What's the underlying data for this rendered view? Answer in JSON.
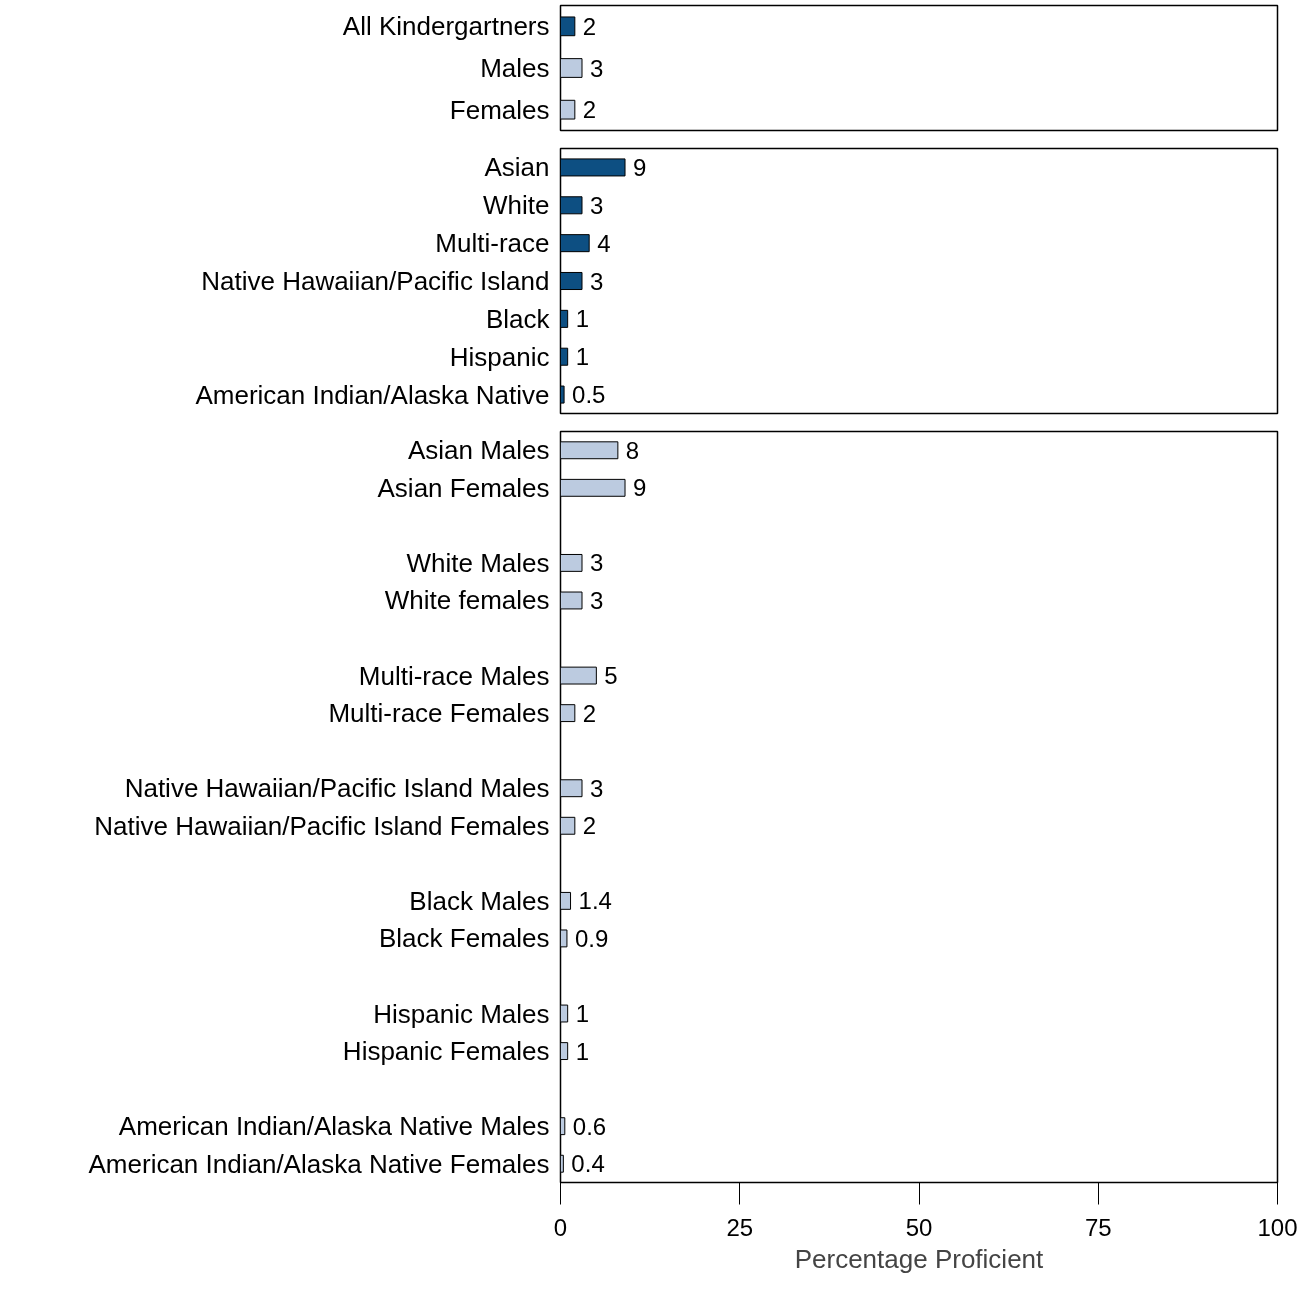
{
  "chart_data": [
    {
      "type": "bar",
      "orientation": "horizontal",
      "categories": [
        "All Kindergartners",
        "Males",
        "Females"
      ],
      "values": [
        2,
        3,
        2
      ],
      "colors": [
        "#0d4f82",
        "#bccbe0",
        "#bccbe0"
      ],
      "data_labels": true,
      "xlim": [
        0,
        100
      ],
      "xticks": [
        0,
        25,
        50,
        75,
        100
      ],
      "tick_labels": "y"
    },
    {
      "type": "bar",
      "orientation": "horizontal",
      "categories": [
        "Asian",
        "White",
        "Multi-race",
        "Native Hawaiian/Pacific Island",
        "Black",
        "Hispanic",
        "American Indian/Alaska Native"
      ],
      "values": [
        9,
        3,
        4,
        3,
        1,
        1,
        0.5
      ],
      "color": "#0d4f82",
      "data_labels": true,
      "xlim": [
        0,
        100
      ],
      "xticks": [
        0,
        25,
        50,
        75,
        100
      ],
      "tick_labels": "y"
    },
    {
      "type": "bar",
      "orientation": "horizontal",
      "categories": [
        "Asian Males",
        "Asian Females",
        null,
        "White Males",
        "White females",
        null,
        "Multi-race Males",
        "Multi-race Females",
        null,
        "Native Hawaiian/Pacific Island Males",
        "Native Hawaiian/Pacific Island Females",
        null,
        "Black Males",
        "Black Females",
        null,
        "Hispanic Males",
        "Hispanic Females",
        null,
        "American Indian/Alaska Native Males",
        "American Indian/Alaska Native Females"
      ],
      "values": [
        8,
        9,
        null,
        3,
        3,
        null,
        5,
        2,
        null,
        3,
        2,
        null,
        1.4,
        0.9,
        null,
        1,
        1,
        null,
        0.6,
        0.4
      ],
      "color": "#bccbe0",
      "data_labels": true,
      "xlim": [
        0,
        100
      ],
      "xticks": [
        0,
        25,
        50,
        75,
        100
      ],
      "xlabel": "Percentage Proficient"
    }
  ]
}
